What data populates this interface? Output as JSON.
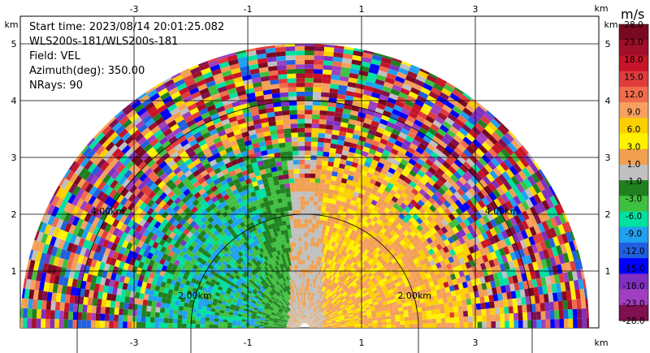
{
  "header": {
    "start_time": "Start time: 2023/08/14 20:01:25.082",
    "instrument": "WLS200s-181/WLS200s-181",
    "field": "Field: VEL",
    "azimuth": "Azimuth(deg): 350.00",
    "nrays": "NRays: 90"
  },
  "chart_data": {
    "type": "heatmap",
    "title": "",
    "projection": "polar-sector",
    "sector_degrees": [
      0,
      180
    ],
    "xlim": [
      -4.2,
      4.2
    ],
    "ylim": [
      0,
      5.3
    ],
    "x_ticks": [
      "-3",
      "-1",
      "1",
      "3"
    ],
    "y_ticks": [
      "1",
      "2",
      "3",
      "4",
      "5"
    ],
    "x_unit": "km",
    "y_unit": "km",
    "grid": true,
    "range_rings": [
      {
        "radius": 2.0,
        "label": "2.00km"
      },
      {
        "radius": 4.0,
        "label": "4.00km"
      }
    ],
    "colorbar": {
      "unit": "m/s",
      "labels": [
        "28.0",
        "23.0",
        "18.0",
        "15.0",
        "12.0",
        "9.0",
        "6.0",
        "3.0",
        "1.0",
        "-1.0",
        "-3.0",
        "-6.0",
        "-9.0",
        "-12.0",
        "-15.0",
        "-18.0",
        "-23.0",
        "-28.0"
      ],
      "colors": [
        "#7a0820",
        "#a0102a",
        "#c81428",
        "#e03c3c",
        "#f06c4c",
        "#f8a060",
        "#fcd000",
        "#fff200",
        "#f0a050",
        "#c0c0c0",
        "#208020",
        "#40c040",
        "#00e0a0",
        "#20a0f0",
        "#2060e0",
        "#0000ff",
        "#8030c0",
        "#a040c0",
        "#801050"
      ]
    },
    "max_range_km": 5.0,
    "near_field_pattern": "negative velocities on left (west), positive on right (east), noisy beyond ~3 km"
  }
}
